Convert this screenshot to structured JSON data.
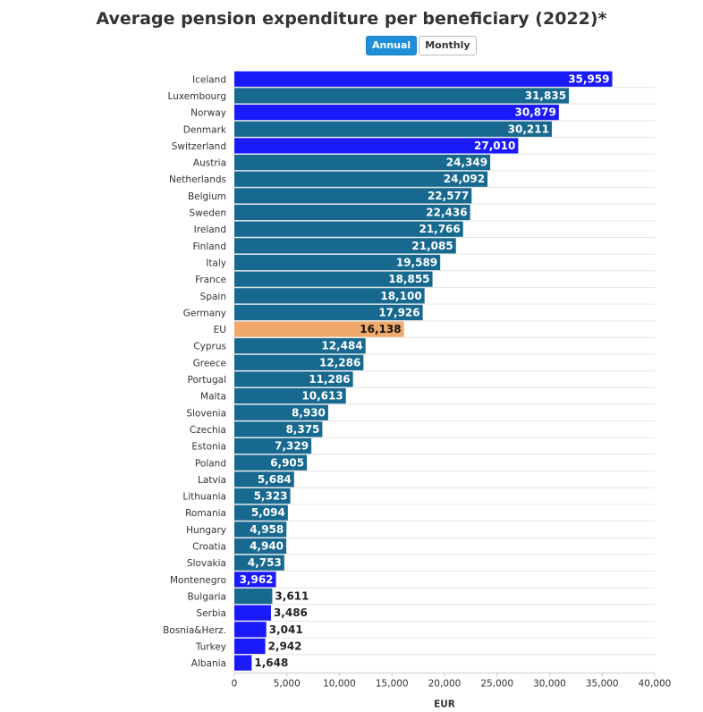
{
  "title": "Average pension expenditure per beneficiary (2022)*",
  "toggle": {
    "annual_label": "Annual",
    "monthly_label": "Monthly",
    "selected": "Annual"
  },
  "colors": {
    "default": "#186990",
    "highlight": "#1a1afa",
    "eu": "#f0a96a",
    "gridline": "#e6e6e6",
    "active_button": "#1f8ed8"
  },
  "chart_data": {
    "type": "bar",
    "orientation": "horizontal",
    "title": "Average pension expenditure per beneficiary (2022)*",
    "xlabel": "EUR",
    "ylabel": "",
    "xlim": [
      0,
      40000
    ],
    "xticks": [
      0,
      5000,
      10000,
      15000,
      20000,
      25000,
      30000,
      35000,
      40000
    ],
    "xtick_labels": [
      "0",
      "5,000",
      "10,000",
      "15,000",
      "20,000",
      "25,000",
      "30,000",
      "35,000",
      "40,000"
    ],
    "grid": true,
    "categories": [
      "Iceland",
      "Luxembourg",
      "Norway",
      "Denmark",
      "Switzerland",
      "Austria",
      "Netherlands",
      "Belgium",
      "Sweden",
      "Ireland",
      "Finland",
      "Italy",
      "France",
      "Spain",
      "Germany",
      "EU",
      "Cyprus",
      "Greece",
      "Portugal",
      "Malta",
      "Slovenia",
      "Czechia",
      "Estonia",
      "Poland",
      "Latvia",
      "Lithuania",
      "Romania",
      "Hungary",
      "Croatia",
      "Slovakia",
      "Montenegro",
      "Bulgaria",
      "Serbia",
      "Bosnia&Herz.",
      "Turkey",
      "Albania"
    ],
    "values": [
      35959,
      31835,
      30879,
      30211,
      27010,
      24349,
      24092,
      22577,
      22436,
      21766,
      21085,
      19589,
      18855,
      18100,
      17926,
      16138,
      12484,
      12286,
      11286,
      10613,
      8930,
      8375,
      7329,
      6905,
      5684,
      5323,
      5094,
      4958,
      4940,
      4753,
      3962,
      3611,
      3486,
      3041,
      2942,
      1648
    ],
    "value_labels": [
      "35,959",
      "31,835",
      "30,879",
      "30,211",
      "27,010",
      "24,349",
      "24,092",
      "22,577",
      "22,436",
      "21,766",
      "21,085",
      "19,589",
      "18,855",
      "18,100",
      "17,926",
      "16,138",
      "12,484",
      "12,286",
      "11,286",
      "10,613",
      "8,930",
      "8,375",
      "7,329",
      "6,905",
      "5,684",
      "5,323",
      "5,094",
      "4,958",
      "4,940",
      "4,753",
      "3,962",
      "3,611",
      "3,486",
      "3,041",
      "2,942",
      "1,648"
    ],
    "bar_color_groups": [
      "highlight",
      "default",
      "highlight",
      "default",
      "highlight",
      "default",
      "default",
      "default",
      "default",
      "default",
      "default",
      "default",
      "default",
      "default",
      "default",
      "eu",
      "default",
      "default",
      "default",
      "default",
      "default",
      "default",
      "default",
      "default",
      "default",
      "default",
      "default",
      "default",
      "default",
      "default",
      "highlight",
      "default",
      "highlight",
      "highlight",
      "highlight",
      "highlight"
    ]
  }
}
